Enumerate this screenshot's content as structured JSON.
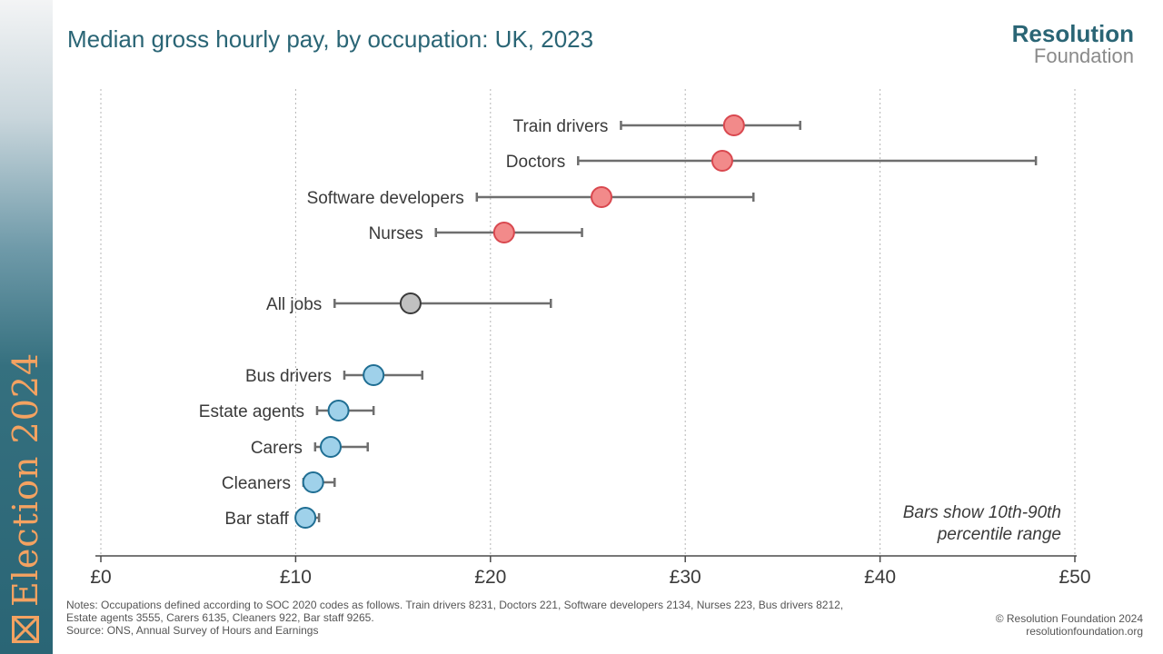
{
  "sidebar": {
    "label": "Election 2024",
    "icon": "ballot-box-icon"
  },
  "header": {
    "title": "Median gross hourly pay, by occupation: UK, 2023"
  },
  "logo": {
    "line1": "Resolution",
    "line2": "Foundation"
  },
  "colors": {
    "high": "#f28a8a",
    "high_stroke": "#d9484f",
    "all": "#c0c0c0",
    "all_stroke": "#3a3a3a",
    "low": "#9fd1ea",
    "low_stroke": "#1f6e93",
    "whisker": "#6e6e6e",
    "grid": "#b5b5b5"
  },
  "chart_data": {
    "type": "scatter",
    "title": "Median gross hourly pay, by occupation: UK, 2023",
    "xlim": [
      0,
      50
    ],
    "x_ticks": [
      "£0",
      "£10",
      "£20",
      "£30",
      "£40",
      "£50"
    ],
    "x_tick_values": [
      0,
      10,
      20,
      30,
      40,
      50
    ],
    "grid": true,
    "annotation": [
      "Bars show 10th-90th",
      "percentile range"
    ],
    "series": [
      {
        "group": "high",
        "rows": [
          {
            "label": "Train drivers",
            "median": 32.5,
            "p10": 26.7,
            "p90": 35.9
          },
          {
            "label": "Doctors",
            "median": 31.9,
            "p10": 24.5,
            "p90": 48.0
          },
          {
            "label": "Software developers",
            "median": 25.7,
            "p10": 19.3,
            "p90": 33.5
          },
          {
            "label": "Nurses",
            "median": 20.7,
            "p10": 17.2,
            "p90": 24.7
          }
        ]
      },
      {
        "group": "all",
        "rows": [
          {
            "label": "All jobs",
            "median": 15.9,
            "p10": 12.0,
            "p90": 23.1
          }
        ]
      },
      {
        "group": "low",
        "rows": [
          {
            "label": "Bus drivers",
            "median": 14.0,
            "p10": 12.5,
            "p90": 16.5
          },
          {
            "label": "Estate agents",
            "median": 12.2,
            "p10": 11.1,
            "p90": 14.0
          },
          {
            "label": "Carers",
            "median": 11.8,
            "p10": 11.0,
            "p90": 13.7
          },
          {
            "label": "Cleaners",
            "median": 10.9,
            "p10": 10.4,
            "p90": 12.0
          },
          {
            "label": "Bar staff",
            "median": 10.5,
            "p10": 10.3,
            "p90": 11.2
          }
        ]
      }
    ]
  },
  "footer": {
    "notes_line1": "Notes: Occupations defined according to SOC 2020 codes as follows. Train drivers 8231, Doctors 221, Software developers 2134, Nurses 223, Bus drivers 8212,",
    "notes_line2": "Estate agents 3555, Carers 6135, Cleaners 922, Bar staff 9265.",
    "source": "Source: ONS, Annual Survey of Hours and Earnings",
    "copyright": "© Resolution Foundation 2024",
    "url": "resolutionfoundation.org"
  }
}
